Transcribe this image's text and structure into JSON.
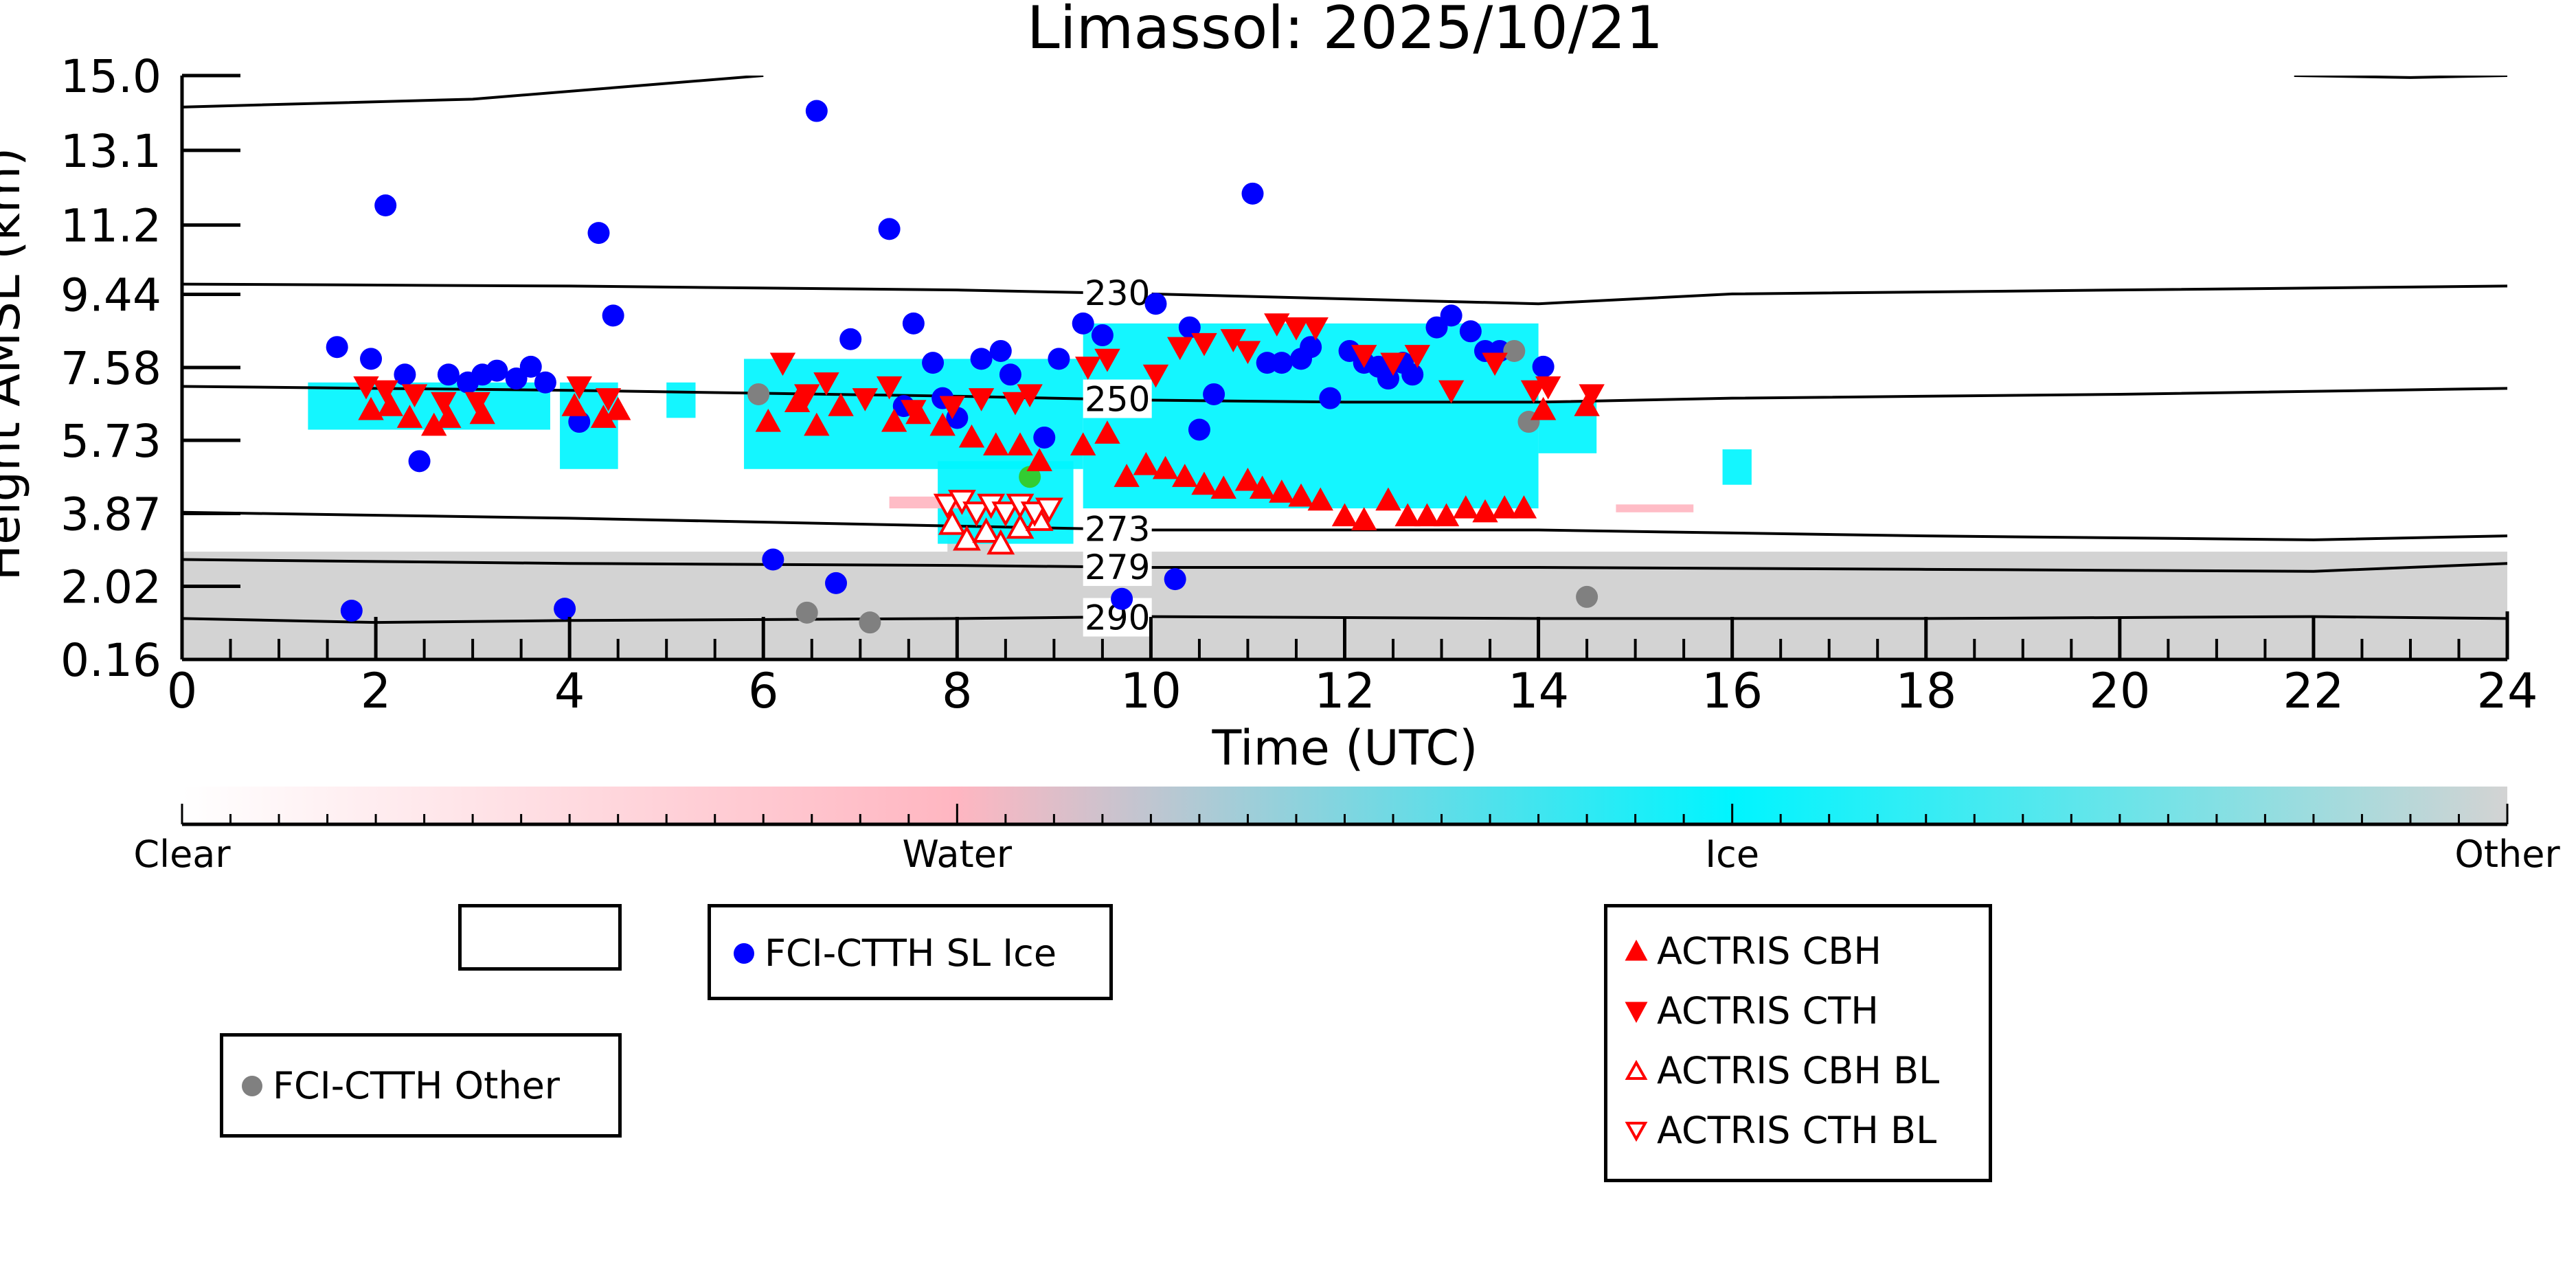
{
  "chart_data": {
    "type": "scatter",
    "title": "Limassol: 2025/10/21",
    "xlabel": "Time (UTC)",
    "ylabel": "Height AMSL (km)",
    "xlim": [
      0,
      24
    ],
    "ylim": [
      0.16,
      15.0
    ],
    "x_ticks": [
      0,
      2,
      4,
      6,
      8,
      10,
      12,
      14,
      16,
      18,
      20,
      22,
      24
    ],
    "y_ticks": [
      {
        "value": 0.16,
        "label": "0.16"
      },
      {
        "value": 2.02,
        "label": "2.02"
      },
      {
        "value": 3.87,
        "label": "3.87"
      },
      {
        "value": 5.73,
        "label": "5.73"
      },
      {
        "value": 7.58,
        "label": "7.58"
      },
      {
        "value": 9.44,
        "label": "9.44"
      },
      {
        "value": 11.2,
        "label": "11.2"
      },
      {
        "value": 13.1,
        "label": "13.1"
      },
      {
        "value": 15.0,
        "label": "15.0"
      }
    ],
    "colorbar": {
      "labels": [
        "Clear",
        "Water",
        "Ice",
        "Other"
      ],
      "colors": [
        "#ffffff",
        "#ffb6c1",
        "#00f5ff",
        "#d3d3d3"
      ]
    },
    "isotherms": [
      {
        "label": "230",
        "label_x": 9.3,
        "points": [
          [
            0,
            9.7
          ],
          [
            4,
            9.65
          ],
          [
            8,
            9.55
          ],
          [
            10,
            9.45
          ],
          [
            14,
            9.2
          ],
          [
            16,
            9.45
          ],
          [
            20,
            9.55
          ],
          [
            24,
            9.65
          ]
        ]
      },
      {
        "label": "250",
        "label_x": 9.3,
        "points": [
          [
            0,
            7.1
          ],
          [
            4,
            7.0
          ],
          [
            8,
            6.85
          ],
          [
            10,
            6.75
          ],
          [
            12,
            6.7
          ],
          [
            14,
            6.7
          ],
          [
            16,
            6.8
          ],
          [
            20,
            6.9
          ],
          [
            24,
            7.05
          ]
        ]
      },
      {
        "label": "273",
        "label_x": 9.3,
        "points": [
          [
            0,
            3.9
          ],
          [
            4,
            3.75
          ],
          [
            8,
            3.55
          ],
          [
            10,
            3.45
          ],
          [
            14,
            3.45
          ],
          [
            18,
            3.3
          ],
          [
            22,
            3.2
          ],
          [
            24,
            3.3
          ]
        ]
      },
      {
        "label": "279",
        "label_x": 9.3,
        "points": [
          [
            0,
            2.7
          ],
          [
            4,
            2.6
          ],
          [
            8,
            2.55
          ],
          [
            10,
            2.5
          ],
          [
            14,
            2.5
          ],
          [
            18,
            2.45
          ],
          [
            22,
            2.4
          ],
          [
            24,
            2.6
          ]
        ]
      },
      {
        "label": "290",
        "label_x": 9.3,
        "points": [
          [
            0,
            1.2
          ],
          [
            2,
            1.1
          ],
          [
            4,
            1.15
          ],
          [
            8,
            1.2
          ],
          [
            10,
            1.25
          ],
          [
            14,
            1.2
          ],
          [
            18,
            1.2
          ],
          [
            22,
            1.25
          ],
          [
            24,
            1.2
          ]
        ]
      },
      {
        "label": "",
        "label_x": 0,
        "points": [
          [
            0,
            14.2
          ],
          [
            3,
            14.4
          ],
          [
            6,
            15.0
          ]
        ]
      },
      {
        "label": "",
        "label_x": 0,
        "points": [
          [
            21.8,
            15.0
          ],
          [
            23,
            14.95
          ],
          [
            24,
            15.0
          ]
        ]
      }
    ],
    "cloud_mask": [
      {
        "class": "Other",
        "x0": 0.0,
        "x1": 24.0,
        "y0": 0.16,
        "y1": 2.9
      },
      {
        "class": "Other",
        "x0": 7.9,
        "x1": 8.5,
        "y0": 1.5,
        "y1": 3.8
      },
      {
        "class": "Ice",
        "x0": 1.3,
        "x1": 3.8,
        "y0": 6.0,
        "y1": 7.2
      },
      {
        "class": "Ice",
        "x0": 3.9,
        "x1": 4.5,
        "y0": 5.0,
        "y1": 7.2
      },
      {
        "class": "Ice",
        "x0": 5.0,
        "x1": 5.3,
        "y0": 6.3,
        "y1": 7.2
      },
      {
        "class": "Ice",
        "x0": 5.8,
        "x1": 9.3,
        "y0": 5.0,
        "y1": 7.8
      },
      {
        "class": "Ice",
        "x0": 7.8,
        "x1": 9.2,
        "y0": 3.1,
        "y1": 5.2
      },
      {
        "class": "Ice",
        "x0": 9.3,
        "x1": 14.0,
        "y0": 4.0,
        "y1": 8.7
      },
      {
        "class": "Ice",
        "x0": 14.0,
        "x1": 14.6,
        "y0": 5.4,
        "y1": 6.7
      },
      {
        "class": "Ice",
        "x0": 15.9,
        "x1": 16.2,
        "y0": 4.6,
        "y1": 5.5
      },
      {
        "class": "Water",
        "x0": 7.3,
        "x1": 8.1,
        "y0": 4.0,
        "y1": 4.3
      },
      {
        "class": "Water",
        "x0": 14.8,
        "x1": 15.6,
        "y0": 3.9,
        "y1": 4.1
      }
    ],
    "series": [
      {
        "name": "FCI-CTTH SL Ice",
        "marker": "circle",
        "color": "#0000ff",
        "points": [
          [
            1.6,
            8.1
          ],
          [
            1.75,
            1.4
          ],
          [
            1.95,
            7.8
          ],
          [
            2.1,
            11.7
          ],
          [
            2.3,
            7.4
          ],
          [
            2.45,
            5.2
          ],
          [
            2.75,
            7.4
          ],
          [
            2.95,
            7.2
          ],
          [
            3.1,
            7.4
          ],
          [
            3.25,
            7.5
          ],
          [
            3.45,
            7.3
          ],
          [
            3.6,
            7.6
          ],
          [
            3.75,
            7.2
          ],
          [
            3.95,
            1.45
          ],
          [
            4.1,
            6.2
          ],
          [
            4.3,
            11.0
          ],
          [
            4.45,
            8.9
          ],
          [
            6.1,
            2.7
          ],
          [
            6.55,
            14.1
          ],
          [
            6.75,
            2.1
          ],
          [
            6.9,
            8.3
          ],
          [
            7.3,
            11.1
          ],
          [
            7.45,
            6.6
          ],
          [
            7.55,
            8.7
          ],
          [
            7.75,
            7.7
          ],
          [
            7.85,
            6.8
          ],
          [
            8.0,
            6.3
          ],
          [
            8.25,
            7.8
          ],
          [
            8.45,
            8.0
          ],
          [
            8.55,
            7.4
          ],
          [
            8.9,
            5.8
          ],
          [
            9.05,
            7.8
          ],
          [
            9.3,
            8.7
          ],
          [
            9.5,
            8.4
          ],
          [
            9.7,
            1.7
          ],
          [
            10.05,
            9.2
          ],
          [
            10.25,
            2.2
          ],
          [
            10.4,
            8.6
          ],
          [
            10.5,
            6.0
          ],
          [
            10.65,
            6.9
          ],
          [
            11.05,
            12.0
          ],
          [
            11.2,
            7.7
          ],
          [
            11.35,
            7.7
          ],
          [
            11.55,
            7.8
          ],
          [
            11.65,
            8.1
          ],
          [
            11.85,
            6.8
          ],
          [
            12.05,
            8.0
          ],
          [
            12.2,
            7.7
          ],
          [
            12.35,
            7.6
          ],
          [
            12.45,
            7.3
          ],
          [
            12.6,
            7.7
          ],
          [
            12.7,
            7.4
          ],
          [
            12.95,
            8.6
          ],
          [
            13.1,
            8.9
          ],
          [
            13.3,
            8.5
          ],
          [
            13.45,
            8.0
          ],
          [
            13.6,
            8.0
          ],
          [
            14.05,
            7.6
          ]
        ]
      },
      {
        "name": "FCI-CTTH Other",
        "marker": "circle",
        "color": "#808080",
        "points": [
          [
            5.95,
            6.9
          ],
          [
            6.45,
            1.35
          ],
          [
            7.1,
            1.1
          ],
          [
            13.75,
            8.0
          ],
          [
            13.9,
            6.2
          ],
          [
            14.5,
            1.75
          ]
        ]
      },
      {
        "name": "FCI-CTTH Water",
        "marker": "circle",
        "color": "#32cd32",
        "points": [
          [
            8.75,
            4.8
          ]
        ]
      },
      {
        "name": "ACTRIS CBH",
        "marker": "triangle-up",
        "color": "#ff0000",
        "filled": true,
        "points": [
          [
            1.95,
            6.5
          ],
          [
            2.15,
            6.6
          ],
          [
            2.35,
            6.3
          ],
          [
            2.6,
            6.1
          ],
          [
            2.75,
            6.3
          ],
          [
            3.1,
            6.4
          ],
          [
            4.05,
            6.6
          ],
          [
            4.35,
            6.3
          ],
          [
            4.5,
            6.5
          ],
          [
            6.05,
            6.2
          ],
          [
            6.35,
            6.7
          ],
          [
            6.55,
            6.1
          ],
          [
            6.8,
            6.6
          ],
          [
            7.35,
            6.2
          ],
          [
            7.6,
            6.4
          ],
          [
            7.85,
            6.1
          ],
          [
            8.15,
            5.8
          ],
          [
            8.4,
            5.6
          ],
          [
            8.65,
            5.6
          ],
          [
            8.85,
            5.2
          ],
          [
            9.3,
            5.6
          ],
          [
            9.55,
            5.9
          ],
          [
            9.75,
            4.8
          ],
          [
            9.95,
            5.1
          ],
          [
            10.15,
            5.0
          ],
          [
            10.35,
            4.8
          ],
          [
            10.55,
            4.6
          ],
          [
            10.75,
            4.5
          ],
          [
            11.0,
            4.7
          ],
          [
            11.15,
            4.5
          ],
          [
            11.35,
            4.4
          ],
          [
            11.55,
            4.3
          ],
          [
            11.75,
            4.2
          ],
          [
            12.0,
            3.8
          ],
          [
            12.2,
            3.7
          ],
          [
            12.45,
            4.2
          ],
          [
            12.65,
            3.8
          ],
          [
            12.85,
            3.8
          ],
          [
            13.05,
            3.8
          ],
          [
            13.25,
            4.0
          ],
          [
            13.45,
            3.9
          ],
          [
            13.65,
            4.0
          ],
          [
            13.85,
            4.0
          ],
          [
            14.05,
            6.5
          ],
          [
            14.5,
            6.6
          ]
        ]
      },
      {
        "name": "ACTRIS CTH",
        "marker": "triangle-down",
        "color": "#ff0000",
        "filled": true,
        "points": [
          [
            1.9,
            7.1
          ],
          [
            2.1,
            7.0
          ],
          [
            2.4,
            6.9
          ],
          [
            2.7,
            6.7
          ],
          [
            3.05,
            6.7
          ],
          [
            4.1,
            7.1
          ],
          [
            4.4,
            6.8
          ],
          [
            6.2,
            7.7
          ],
          [
            6.45,
            6.9
          ],
          [
            6.65,
            7.2
          ],
          [
            7.05,
            6.8
          ],
          [
            7.3,
            7.1
          ],
          [
            7.55,
            6.5
          ],
          [
            7.95,
            6.6
          ],
          [
            8.25,
            6.8
          ],
          [
            8.6,
            6.7
          ],
          [
            8.75,
            6.9
          ],
          [
            9.35,
            7.6
          ],
          [
            9.55,
            7.8
          ],
          [
            10.05,
            7.4
          ],
          [
            10.3,
            8.1
          ],
          [
            10.55,
            8.2
          ],
          [
            10.85,
            8.3
          ],
          [
            11.0,
            8.0
          ],
          [
            11.3,
            8.7
          ],
          [
            11.5,
            8.6
          ],
          [
            11.7,
            8.6
          ],
          [
            12.2,
            7.9
          ],
          [
            12.5,
            7.7
          ],
          [
            12.75,
            7.9
          ],
          [
            13.1,
            7.0
          ],
          [
            13.55,
            7.7
          ],
          [
            13.95,
            7.0
          ],
          [
            14.1,
            7.1
          ],
          [
            14.55,
            6.9
          ]
        ]
      },
      {
        "name": "ACTRIS CBH BL",
        "marker": "triangle-up",
        "color": "#ff0000",
        "filled": false,
        "points": [
          [
            7.95,
            3.6
          ],
          [
            8.1,
            3.2
          ],
          [
            8.3,
            3.4
          ],
          [
            8.45,
            3.1
          ],
          [
            8.65,
            3.5
          ],
          [
            8.85,
            3.7
          ]
        ]
      },
      {
        "name": "ACTRIS CTH BL",
        "marker": "triangle-down",
        "color": "#ff0000",
        "filled": false,
        "points": [
          [
            7.9,
            4.1
          ],
          [
            8.05,
            4.2
          ],
          [
            8.2,
            3.9
          ],
          [
            8.35,
            4.1
          ],
          [
            8.5,
            3.9
          ],
          [
            8.65,
            4.1
          ],
          [
            8.8,
            3.9
          ],
          [
            8.95,
            4.0
          ]
        ]
      }
    ],
    "legends": [
      {
        "entries": [
          {
            "label": "FCI-CTTH SL Ice",
            "marker": "circle",
            "color": "#0000ff",
            "filled": true
          }
        ]
      },
      {
        "entries": [
          {
            "label": "FCI-CTTH Other",
            "marker": "circle",
            "color": "#808080",
            "filled": true
          }
        ]
      },
      {
        "entries": [
          {
            "label": "ACTRIS CBH",
            "marker": "triangle-up",
            "color": "#ff0000",
            "filled": true
          },
          {
            "label": "ACTRIS CTH",
            "marker": "triangle-down",
            "color": "#ff0000",
            "filled": true
          },
          {
            "label": "ACTRIS CBH BL",
            "marker": "triangle-up",
            "color": "#ff0000",
            "filled": false
          },
          {
            "label": "ACTRIS CTH BL",
            "marker": "triangle-down",
            "color": "#ff0000",
            "filled": false
          }
        ]
      },
      {
        "entries": []
      }
    ]
  }
}
